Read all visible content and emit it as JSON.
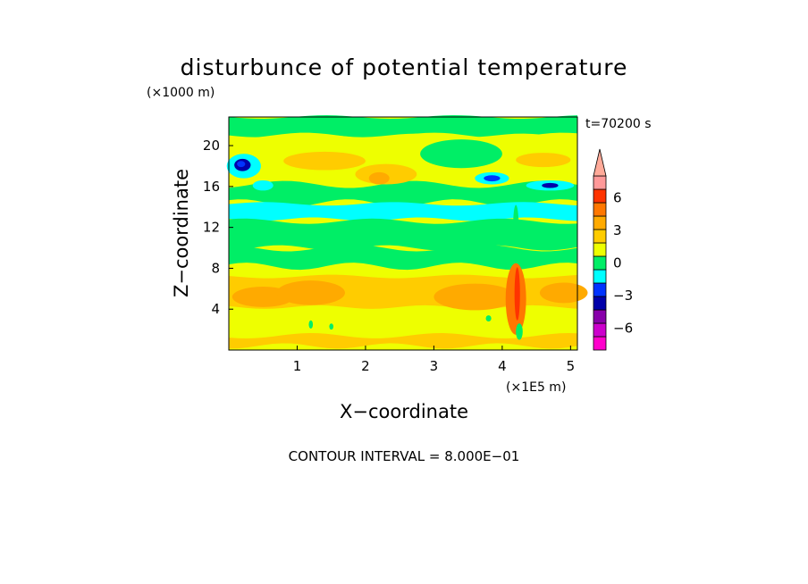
{
  "colors": {
    "levels": [
      "#ff00cc",
      "#cc00cc",
      "#8800aa",
      "#0000aa",
      "#0033ff",
      "#00ffff",
      "#00ee66",
      "#eeff00",
      "#ffcc00",
      "#ffaa00",
      "#ff7700",
      "#ff3300",
      "#ff9999",
      "#ffaa99"
    ],
    "background_field": "#eeff00",
    "frame": "#000000"
  },
  "chart_data": {
    "type": "heatmap",
    "title": "disturbunce of potential temperature",
    "xlabel": "X−coordinate",
    "ylabel": "Z−coordinate",
    "x_unit": "(×1E5 m)",
    "y_unit": "(×1000 m)",
    "time_label": "t=70200 s",
    "contour_interval_label": "CONTOUR INTERVAL = 8.000E−01",
    "xlim": [
      0,
      5.1
    ],
    "ylim": [
      0,
      22.8
    ],
    "x_ticks": [
      {
        "value": 1,
        "label": "1"
      },
      {
        "value": 2,
        "label": "2"
      },
      {
        "value": 3,
        "label": "3"
      },
      {
        "value": 4,
        "label": "4"
      },
      {
        "value": 5,
        "label": "5"
      }
    ],
    "y_ticks": [
      {
        "value": 4,
        "label": "4"
      },
      {
        "value": 8,
        "label": "8"
      },
      {
        "value": 12,
        "label": "12"
      },
      {
        "value": 16,
        "label": "16"
      },
      {
        "value": 20,
        "label": "20"
      }
    ],
    "colorbar": {
      "min": -8,
      "max": 8,
      "labels": [
        {
          "value": 6,
          "label": "6"
        },
        {
          "value": 3,
          "label": "3"
        },
        {
          "value": 0,
          "label": "0"
        },
        {
          "value": -3,
          "label": "−3"
        },
        {
          "value": -6,
          "label": "−6"
        }
      ]
    },
    "bands": [
      {
        "level": 6,
        "z0": 21.0,
        "z1": 22.8
      },
      {
        "level": 7,
        "z0": 18.8,
        "z1": 21.0
      },
      {
        "level": 6,
        "z0": 14.4,
        "z1": 16.2
      },
      {
        "level": 5,
        "z0": 12.8,
        "z1": 14.3
      },
      {
        "level": 6,
        "z0": 10.0,
        "z1": 12.6
      },
      {
        "level": 6,
        "z0": 8.2,
        "z1": 10.0
      },
      {
        "level": 8,
        "z0": 4.2,
        "z1": 7.2
      },
      {
        "level": 8,
        "z0": 0.4,
        "z1": 1.4
      }
    ],
    "blobs": [
      {
        "level": 5,
        "x": 0.22,
        "z": 18.0,
        "rx": 0.25,
        "rz": 1.2
      },
      {
        "level": 3,
        "x": 0.2,
        "z": 18.1,
        "rx": 0.12,
        "rz": 0.6
      },
      {
        "level": 4,
        "x": 0.18,
        "z": 18.2,
        "rx": 0.06,
        "rz": 0.3
      },
      {
        "level": 5,
        "x": 0.5,
        "z": 16.1,
        "rx": 0.15,
        "rz": 0.5
      },
      {
        "level": 8,
        "x": 1.4,
        "z": 18.5,
        "rx": 0.6,
        "rz": 0.9
      },
      {
        "level": 8,
        "x": 2.3,
        "z": 17.2,
        "rx": 0.45,
        "rz": 1.0
      },
      {
        "level": 9,
        "x": 2.2,
        "z": 16.8,
        "rx": 0.15,
        "rz": 0.6
      },
      {
        "level": 6,
        "x": 3.4,
        "z": 19.2,
        "rx": 0.6,
        "rz": 1.4
      },
      {
        "level": 5,
        "x": 3.85,
        "z": 16.8,
        "rx": 0.25,
        "rz": 0.6
      },
      {
        "level": 4,
        "x": 3.85,
        "z": 16.8,
        "rx": 0.12,
        "rz": 0.3
      },
      {
        "level": 5,
        "x": 4.7,
        "z": 16.1,
        "rx": 0.35,
        "rz": 0.5
      },
      {
        "level": 3,
        "x": 4.7,
        "z": 16.1,
        "rx": 0.12,
        "rz": 0.25
      },
      {
        "level": 8,
        "x": 4.6,
        "z": 18.6,
        "rx": 0.4,
        "rz": 0.7
      },
      {
        "level": 9,
        "x": 0.5,
        "z": 5.2,
        "rx": 0.45,
        "rz": 1.0
      },
      {
        "level": 9,
        "x": 1.2,
        "z": 5.6,
        "rx": 0.5,
        "rz": 1.2
      },
      {
        "level": 9,
        "x": 3.6,
        "z": 5.2,
        "rx": 0.6,
        "rz": 1.3
      },
      {
        "level": 9,
        "x": 4.9,
        "z": 5.6,
        "rx": 0.35,
        "rz": 1.0
      },
      {
        "level": 10,
        "x": 4.2,
        "z": 5.0,
        "rx": 0.15,
        "rz": 3.5
      },
      {
        "level": 11,
        "x": 4.22,
        "z": 5.5,
        "rx": 0.04,
        "rz": 2.6
      },
      {
        "level": 6,
        "x": 4.2,
        "z": 12.2,
        "rx": 0.04,
        "rz": 2.0
      },
      {
        "level": 6,
        "x": 1.2,
        "z": 2.5,
        "rx": 0.03,
        "rz": 0.4
      },
      {
        "level": 6,
        "x": 1.5,
        "z": 2.3,
        "rx": 0.03,
        "rz": 0.3
      },
      {
        "level": 6,
        "x": 4.25,
        "z": 1.8,
        "rx": 0.05,
        "rz": 0.8
      },
      {
        "level": 6,
        "x": 3.8,
        "z": 3.1,
        "rx": 0.04,
        "rz": 0.3
      }
    ]
  }
}
